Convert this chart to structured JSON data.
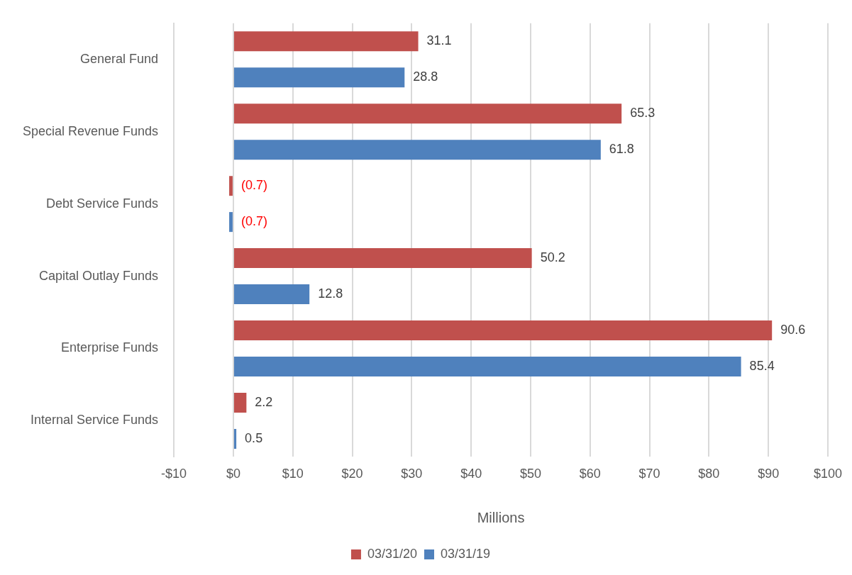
{
  "chart_data": {
    "type": "bar",
    "orientation": "horizontal",
    "xlabel": "Millions",
    "categories": [
      "General Fund",
      "Special Revenue Funds",
      "Debt Service Funds",
      "Capital Outlay Funds",
      "Enterprise Funds",
      "Internal Service Funds"
    ],
    "series": [
      {
        "name": "03/31/20",
        "color": "#c0504d",
        "values": [
          31.1,
          65.3,
          -0.7,
          50.2,
          90.6,
          2.2
        ],
        "value_labels": [
          "31.1",
          "65.3",
          "(0.7)",
          "50.2",
          "90.6",
          "2.2"
        ]
      },
      {
        "name": "03/31/19",
        "color": "#4f81bd",
        "values": [
          28.8,
          61.8,
          -0.7,
          12.8,
          85.4,
          0.5
        ],
        "value_labels": [
          "28.8",
          "61.8",
          "(0.7)",
          "12.8",
          "85.4",
          "0.5"
        ]
      }
    ],
    "xlim": [
      -10,
      100
    ],
    "xticks": [
      {
        "value": -10,
        "label": "-$10"
      },
      {
        "value": 0,
        "label": "$0"
      },
      {
        "value": 10,
        "label": "$10"
      },
      {
        "value": 20,
        "label": "$20"
      },
      {
        "value": 30,
        "label": "$30"
      },
      {
        "value": 40,
        "label": "$40"
      },
      {
        "value": 50,
        "label": "$50"
      },
      {
        "value": 60,
        "label": "$60"
      },
      {
        "value": 70,
        "label": "$70"
      },
      {
        "value": 80,
        "label": "$80"
      },
      {
        "value": 90,
        "label": "$90"
      },
      {
        "value": 100,
        "label": "$100"
      }
    ],
    "grid": "x",
    "legend": "bottom"
  }
}
